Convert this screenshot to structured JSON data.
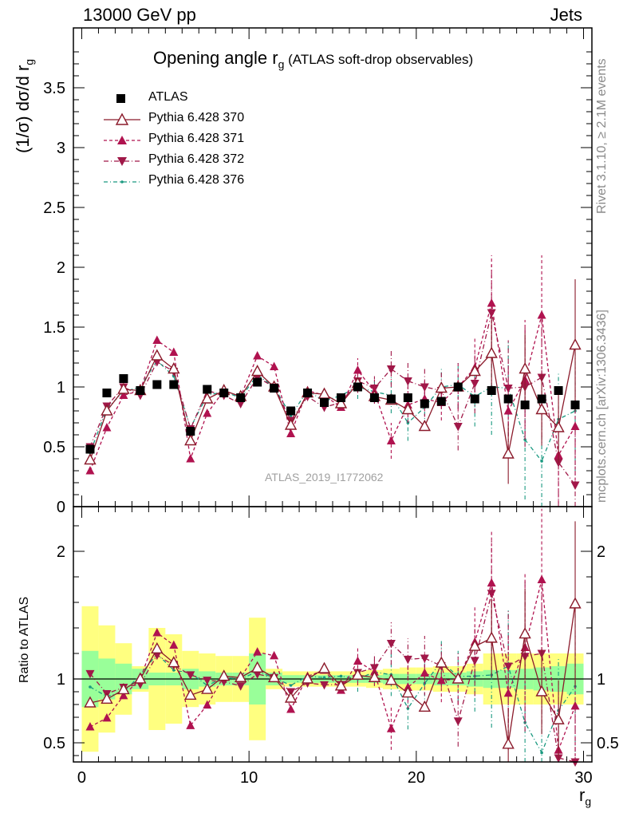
{
  "header": {
    "left": "13000 GeV pp",
    "right": "Jets"
  },
  "side_notes": {
    "rivet": "Rivet 3.1.10, ≥ 2.1M events",
    "mcplots": "mcplots.cern.ch [arXiv:1306.3436]"
  },
  "watermark": "ATLAS_2019_I1772062",
  "chart_data": [
    {
      "type": "scatter",
      "title_main": "Opening angle r",
      "title_sub": "g",
      "title_rest": " (ATLAS soft-drop observables)",
      "ylabel": "(1/σ) dσ/d r",
      "ylabel_sub": "g",
      "xlim": [
        -0.5,
        30.5
      ],
      "ylim": [
        0,
        4
      ],
      "yticks": [
        0,
        0.5,
        1,
        1.5,
        2,
        2.5,
        3,
        3.5
      ],
      "ytick_labels": [
        "0",
        "0.5",
        "1",
        "1.5",
        "2",
        "2.5",
        "3",
        "3.5"
      ],
      "legend_position": "top-left",
      "x": [
        0.5,
        1.5,
        2.5,
        3.5,
        4.5,
        5.5,
        6.5,
        7.5,
        8.5,
        9.5,
        10.5,
        11.5,
        12.5,
        13.5,
        14.5,
        15.5,
        16.5,
        17.5,
        18.5,
        19.5,
        20.5,
        21.5,
        22.5,
        23.5,
        24.5,
        25.5,
        26.5,
        27.5,
        28.5,
        29.5
      ],
      "series": [
        {
          "name": "ATLAS",
          "color": "#000000",
          "style": "data",
          "values": [
            0.48,
            0.95,
            1.07,
            0.97,
            1.02,
            1.02,
            0.63,
            0.98,
            0.95,
            0.91,
            1.04,
            0.99,
            0.8,
            0.95,
            0.87,
            0.91,
            1.0,
            0.91,
            0.9,
            0.91,
            0.86,
            0.88,
            1.0,
            0.9,
            0.97,
            0.9,
            0.85,
            0.9,
            0.97,
            0.85
          ]
        },
        {
          "name": "Pythia 6.428 370",
          "color": "#8b1a2b",
          "style": "solid-open-triangle",
          "values": [
            0.39,
            0.8,
            0.98,
            0.97,
            1.26,
            1.15,
            0.55,
            0.9,
            0.97,
            0.92,
            1.13,
            1.0,
            0.68,
            0.95,
            0.94,
            0.86,
            1.03,
            0.92,
            0.89,
            0.81,
            0.67,
            0.99,
            1.0,
            1.13,
            1.28,
            0.44,
            1.15,
            0.81,
            0.66,
            1.35
          ],
          "errors": [
            0,
            0,
            0,
            0,
            0,
            0,
            0,
            0,
            0,
            0,
            0,
            0,
            0,
            0,
            0,
            0,
            0,
            0,
            0,
            0,
            0,
            0,
            0,
            0,
            0.3,
            0.25,
            0.3,
            0.3,
            0.3,
            0.55
          ]
        },
        {
          "name": "Pythia 6.428 371",
          "color": "#b0124f",
          "style": "dashed-filled-up",
          "values": [
            0.3,
            0.66,
            0.93,
            0.97,
            1.39,
            1.29,
            0.4,
            0.78,
            0.97,
            0.92,
            1.26,
            1.17,
            0.61,
            0.97,
            0.93,
            0.83,
            1.14,
            0.96,
            0.55,
            0.85,
            0.9,
            0.87,
            1.0,
            1.16,
            1.7,
            0.8,
            1.06,
            1.6,
            0.43,
            0.67
          ],
          "errors": [
            0,
            0,
            0,
            0,
            0,
            0,
            0,
            0,
            0,
            0,
            0,
            0,
            0,
            0,
            0,
            0,
            0.1,
            0.1,
            0.15,
            0.15,
            0.15,
            0.15,
            0.2,
            0.25,
            0.4,
            0.4,
            0.5,
            0.5,
            0.4,
            0.5
          ]
        },
        {
          "name": "Pythia 6.428 372",
          "color": "#a01848",
          "style": "dashdot-filled-down",
          "values": [
            0.5,
            0.84,
            1.0,
            0.93,
            1.21,
            1.13,
            0.65,
            0.97,
            0.93,
            0.86,
            1.08,
            1.0,
            0.72,
            0.92,
            0.83,
            0.87,
            1.05,
            0.99,
            1.15,
            1.05,
            1.0,
            0.97,
            0.67,
            1.03,
            1.62,
            0.99,
            1.0,
            1.08,
            0.37,
            0.18
          ],
          "errors": [
            0,
            0,
            0,
            0,
            0,
            0,
            0,
            0,
            0,
            0,
            0,
            0,
            0,
            0,
            0,
            0,
            0.1,
            0.1,
            0.15,
            0.15,
            0.15,
            0.15,
            0.2,
            0.25,
            0.4,
            0.4,
            0.5,
            0.5,
            0.4,
            0.5
          ]
        },
        {
          "name": "Pythia 6.428 376",
          "color": "#1a9980",
          "style": "dashdot-small-dot",
          "values": [
            0.45,
            0.82,
            0.96,
            1.0,
            1.22,
            1.09,
            0.66,
            0.93,
            0.96,
            0.91,
            1.1,
            1.0,
            0.76,
            0.97,
            0.88,
            0.93,
            1.0,
            0.96,
            0.93,
            0.7,
            0.83,
            1.0,
            1.02,
            0.92,
            1.0,
            0.99,
            0.56,
            0.38,
            0.73,
            0.8
          ],
          "errors": [
            0,
            0,
            0,
            0,
            0,
            0,
            0,
            0,
            0,
            0,
            0,
            0,
            0,
            0,
            0,
            0,
            0.1,
            0.1,
            0.15,
            0.15,
            0.15,
            0.15,
            0.2,
            0.25,
            0.4,
            0.4,
            0.5,
            0.5,
            0.4,
            0.5
          ]
        }
      ]
    },
    {
      "type": "scatter",
      "ylabel": "Ratio to ATLAS",
      "xlabel": "r",
      "xlabel_sub": "g",
      "xlim": [
        -0.5,
        30.5
      ],
      "ylim": [
        0.35,
        2.35
      ],
      "xticks": [
        0,
        10,
        20,
        30
      ],
      "xtick_labels": [
        "0",
        "10",
        "20",
        "30"
      ],
      "yticks": [
        0.5,
        1,
        2
      ],
      "ytick_labels": [
        "0.5",
        "1",
        "2"
      ],
      "bands": {
        "stat_color": "#99ff99",
        "total_color": "#ffff80",
        "inner": [
          0.22,
          0.16,
          0.12,
          0.08,
          0.05,
          0.05,
          0.08,
          0.06,
          0.05,
          0.05,
          0.2,
          0.05,
          0.03,
          0.03,
          0.03,
          0.03,
          0.03,
          0.03,
          0.04,
          0.04,
          0.04,
          0.05,
          0.05,
          0.06,
          0.07,
          0.07,
          0.08,
          0.09,
          0.1,
          0.12
        ],
        "outer": [
          0.57,
          0.42,
          0.28,
          0.1,
          0.4,
          0.35,
          0.22,
          0.2,
          0.18,
          0.18,
          0.48,
          0.08,
          0.06,
          0.06,
          0.06,
          0.06,
          0.06,
          0.07,
          0.08,
          0.09,
          0.09,
          0.1,
          0.1,
          0.12,
          0.2,
          0.2,
          0.2,
          0.2,
          0.2,
          0.2
        ]
      }
    }
  ]
}
